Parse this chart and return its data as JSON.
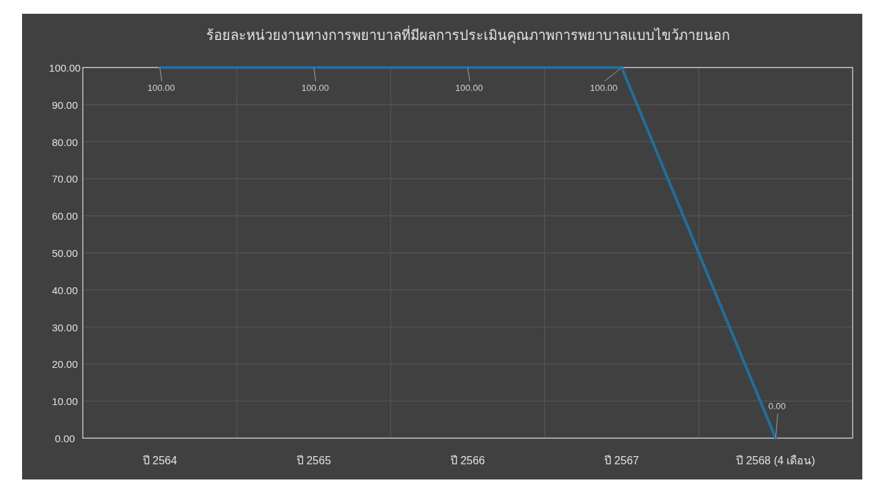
{
  "chart_data": {
    "type": "line",
    "title": "ร้อยละหน่วยงานทางการพยาบาลที่มีผลการประเมินคุณภาพการพยาบาลแบบไขว้ภายนอก",
    "categories": [
      "ปี 2564",
      "ปี 2565",
      "ปี 2566",
      "ปี 2567",
      "ปี 2568 (4 เดือน)"
    ],
    "series": [
      {
        "color": "#1f6f9f",
        "values": [
          100,
          100,
          100,
          100,
          0
        ],
        "value_labels": [
          "100.00",
          "100.00",
          "100.00",
          "100.00",
          "0.00"
        ]
      }
    ],
    "ylim": [
      0,
      100
    ],
    "yticks": [
      {
        "value": 0,
        "label": "0.00"
      },
      {
        "value": 10,
        "label": "10.00"
      },
      {
        "value": 20,
        "label": "20.00"
      },
      {
        "value": 30,
        "label": "30.00"
      },
      {
        "value": 40,
        "label": "40.00"
      },
      {
        "value": 50,
        "label": "50.00"
      },
      {
        "value": 60,
        "label": "60.00"
      },
      {
        "value": 70,
        "label": "70.00"
      },
      {
        "value": 80,
        "label": "80.00"
      },
      {
        "value": 90,
        "label": "90.00"
      },
      {
        "value": 100,
        "label": "100.00"
      }
    ],
    "grid": true,
    "marker": "none",
    "line_style": "solid"
  }
}
